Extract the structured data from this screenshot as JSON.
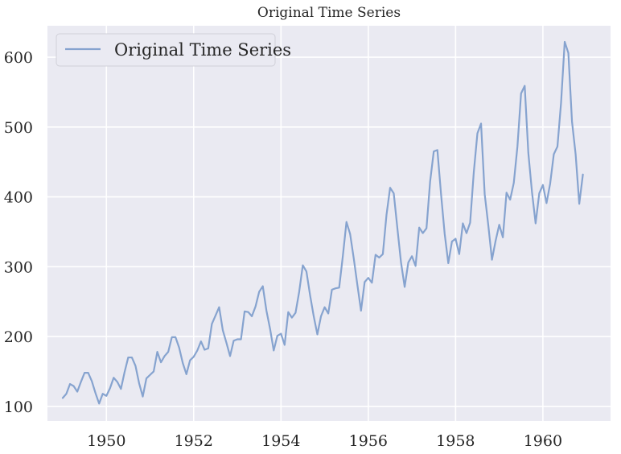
{
  "chart_data": {
    "type": "line",
    "title": "Original Time Series",
    "xlabel": "",
    "ylabel": "",
    "xlim": [
      1948.65,
      1961.55
    ],
    "ylim": [
      79,
      645
    ],
    "x_ticks": [
      1950,
      1952,
      1954,
      1956,
      1958,
      1960
    ],
    "x_tick_labels": [
      "1950",
      "1952",
      "1954",
      "1956",
      "1958",
      "1960"
    ],
    "y_ticks": [
      100,
      200,
      300,
      400,
      500,
      600
    ],
    "y_tick_labels": [
      "100",
      "200",
      "300",
      "400",
      "500",
      "600"
    ],
    "grid": true,
    "legend": {
      "position": "top-left",
      "entries": [
        "Original Time Series"
      ]
    },
    "colors": {
      "background": "#eaeaf2",
      "grid": "#ffffff",
      "line": "#86a3cf"
    },
    "x_start": "1949-01",
    "x_step": "1 month",
    "series": [
      {
        "name": "Original Time Series",
        "values": [
          112,
          118,
          132,
          129,
          121,
          135,
          148,
          148,
          136,
          119,
          104,
          118,
          115,
          126,
          141,
          135,
          125,
          149,
          170,
          170,
          158,
          133,
          114,
          140,
          145,
          150,
          178,
          163,
          172,
          178,
          199,
          199,
          184,
          162,
          146,
          166,
          171,
          180,
          193,
          181,
          183,
          218,
          230,
          242,
          209,
          191,
          172,
          194,
          196,
          196,
          236,
          235,
          229,
          243,
          264,
          272,
          237,
          211,
          180,
          201,
          204,
          188,
          235,
          227,
          234,
          264,
          302,
          293,
          259,
          229,
          203,
          229,
          242,
          233,
          267,
          269,
          270,
          315,
          364,
          347,
          312,
          274,
          237,
          278,
          284,
          277,
          317,
          313,
          318,
          374,
          413,
          405,
          355,
          306,
          271,
          306,
          315,
          301,
          356,
          348,
          355,
          422,
          465,
          467,
          404,
          347,
          305,
          336,
          340,
          318,
          362,
          348,
          363,
          435,
          491,
          505,
          404,
          359,
          310,
          337,
          360,
          342,
          406,
          396,
          420,
          472,
          548,
          559,
          463,
          407,
          362,
          405,
          417,
          391,
          419,
          461,
          472,
          535,
          622,
          606,
          508,
          461,
          390,
          432
        ]
      }
    ]
  }
}
